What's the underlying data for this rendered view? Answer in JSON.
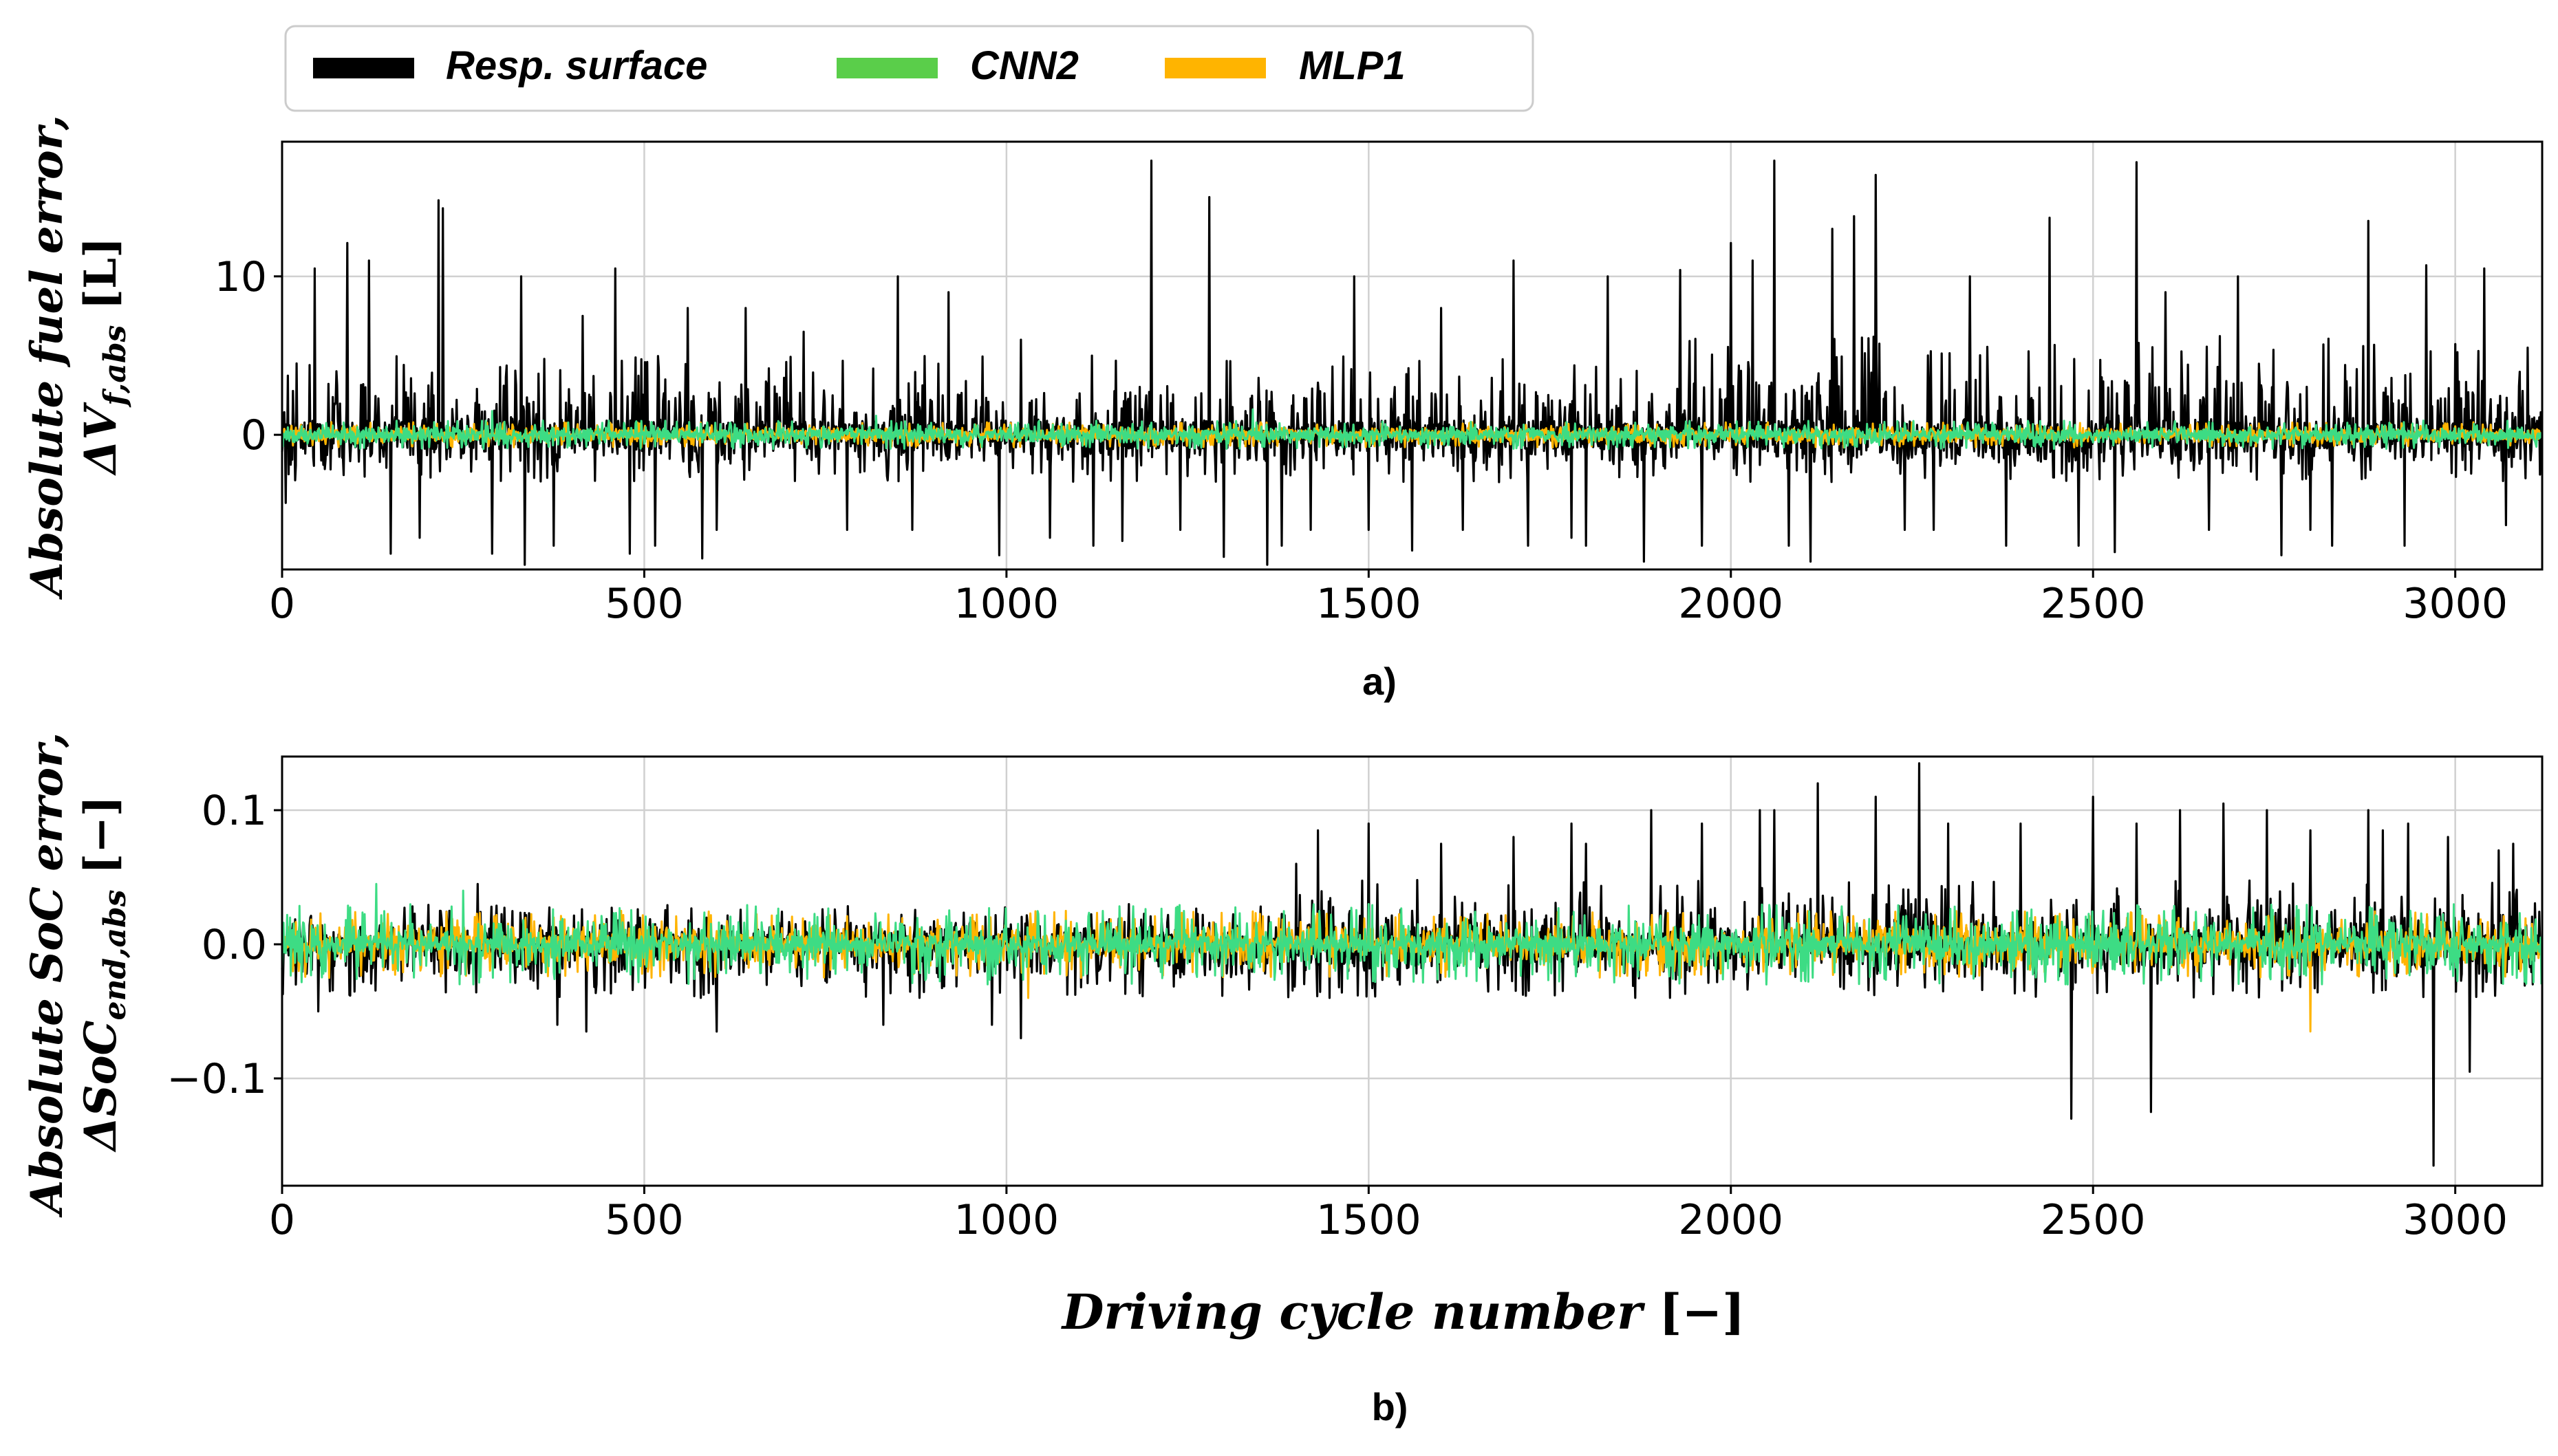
{
  "legend": [
    {
      "name": "Resp. surface",
      "color": "#000000"
    },
    {
      "name": "CNN2",
      "color": "#5ace4a"
    },
    {
      "name": "MLP1",
      "color": "#ffb400"
    }
  ],
  "xlabel_text": "Driving cycle number",
  "xlabel_unit": "[−]",
  "chart_data": [
    {
      "type": "line",
      "panel": "a)",
      "ylabel_line1": "Absolute fuel error,",
      "ylabel_sym": "ΔV",
      "ylabel_sub": "f,abs",
      "ylabel_unit": "[L]",
      "xlim": [
        0,
        3120
      ],
      "ylim": [
        -8.5,
        18.5
      ],
      "xticks": [
        0,
        500,
        1000,
        1500,
        2000,
        2500,
        3000
      ],
      "xtick_labels": [
        "0",
        "500",
        "1000",
        "1500",
        "2000",
        "2500",
        "3000"
      ],
      "yticks": [
        0,
        10
      ],
      "ytick_labels": [
        "0",
        "10"
      ],
      "grid": true,
      "series": [
        {
          "name": "Resp. surface",
          "color": "#000000",
          "amplitude_pos": 5,
          "amplitude_neg": 3,
          "noise": 0.9,
          "peaks": [
            [
              5,
              -4.3
            ],
            [
              20,
              4.5
            ],
            [
              45,
              10.5
            ],
            [
              90,
              12.1
            ],
            [
              120,
              11
            ],
            [
              150,
              -7.5
            ],
            [
              190,
              -6.5
            ],
            [
              216,
              14.8
            ],
            [
              222,
              14.3
            ],
            [
              290,
              -7.5
            ],
            [
              330,
              10
            ],
            [
              335,
              -8.2
            ],
            [
              375,
              -7
            ],
            [
              415,
              7.5
            ],
            [
              460,
              10.5
            ],
            [
              480,
              -7.5
            ],
            [
              515,
              -7
            ],
            [
              560,
              8
            ],
            [
              580,
              -7.8
            ],
            [
              600,
              -6
            ],
            [
              640,
              8
            ],
            [
              720,
              6.5
            ],
            [
              780,
              -6
            ],
            [
              850,
              10
            ],
            [
              870,
              -6
            ],
            [
              920,
              9
            ],
            [
              990,
              -7.6
            ],
            [
              1020,
              6
            ],
            [
              1060,
              -6.5
            ],
            [
              1120,
              -7
            ],
            [
              1160,
              -6.7
            ],
            [
              1200,
              17.3
            ],
            [
              1240,
              -6
            ],
            [
              1280,
              15
            ],
            [
              1300,
              -7.7
            ],
            [
              1360,
              -8.2
            ],
            [
              1380,
              -7
            ],
            [
              1420,
              -6
            ],
            [
              1480,
              10
            ],
            [
              1500,
              -6
            ],
            [
              1560,
              -7.3
            ],
            [
              1600,
              8
            ],
            [
              1630,
              -6
            ],
            [
              1700,
              11
            ],
            [
              1720,
              -7
            ],
            [
              1780,
              -6.5
            ],
            [
              1800,
              -7
            ],
            [
              1830,
              10
            ],
            [
              1880,
              -8
            ],
            [
              1930,
              10.4
            ],
            [
              1960,
              -7
            ],
            [
              2000,
              12.1
            ],
            [
              2030,
              11
            ],
            [
              2060,
              17.3
            ],
            [
              2080,
              -7
            ],
            [
              2110,
              -8
            ],
            [
              2140,
              13
            ],
            [
              2170,
              13.8
            ],
            [
              2200,
              16.4
            ],
            [
              2240,
              -6
            ],
            [
              2280,
              -6
            ],
            [
              2330,
              10
            ],
            [
              2380,
              -7
            ],
            [
              2440,
              13.7
            ],
            [
              2480,
              -7
            ],
            [
              2530,
              -7.4
            ],
            [
              2560,
              17.2
            ],
            [
              2600,
              9
            ],
            [
              2660,
              -6
            ],
            [
              2700,
              10
            ],
            [
              2760,
              -7.6
            ],
            [
              2800,
              -6
            ],
            [
              2830,
              -7
            ],
            [
              2880,
              13.5
            ],
            [
              2930,
              -7
            ],
            [
              2960,
              10.7
            ],
            [
              3040,
              10.5
            ],
            [
              3070,
              -5.7
            ],
            [
              3100,
              5.5
            ]
          ]
        },
        {
          "name": "MLP1",
          "color": "#ffb400",
          "amplitude_pos": 0.8,
          "amplitude_neg": 0.8,
          "noise": 0.3,
          "peaks": []
        },
        {
          "name": "CNN2",
          "color": "#3ddc84",
          "amplitude_pos": 0.9,
          "amplitude_neg": 0.9,
          "noise": 0.3,
          "peaks": [
            [
              290,
              1.5
            ],
            [
              1340,
              1.6
            ],
            [
              820,
              1.2
            ]
          ]
        }
      ]
    },
    {
      "type": "line",
      "panel": "b)",
      "ylabel_line1": "Absolute SoC error,",
      "ylabel_sym": "ΔSoC",
      "ylabel_sub": "end,abs",
      "ylabel_unit": "[−]",
      "xlim": [
        0,
        3120
      ],
      "ylim": [
        -0.18,
        0.14
      ],
      "xticks": [
        0,
        500,
        1000,
        1500,
        2000,
        2500,
        3000
      ],
      "xtick_labels": [
        "0",
        "500",
        "1000",
        "1500",
        "2000",
        "2500",
        "3000"
      ],
      "yticks": [
        -0.1,
        0.0,
        0.1
      ],
      "ytick_labels": [
        "−0.1",
        "0.0",
        "0.1"
      ],
      "grid": true,
      "series": [
        {
          "name": "Resp. surface",
          "color": "#000000",
          "amplitude_pos": 0.03,
          "amplitude_neg": 0.04,
          "noise": 0.01,
          "peaks": [
            [
              50,
              -0.05
            ],
            [
              270,
              0.045
            ],
            [
              380,
              -0.06
            ],
            [
              420,
              -0.065
            ],
            [
              600,
              -0.065
            ],
            [
              830,
              -0.06
            ],
            [
              980,
              -0.06
            ],
            [
              1020,
              -0.07
            ],
            [
              1400,
              0.06
            ],
            [
              1430,
              0.085
            ],
            [
              1500,
              0.09
            ],
            [
              1600,
              0.075
            ],
            [
              1700,
              0.08
            ],
            [
              1780,
              0.09
            ],
            [
              1800,
              0.075
            ],
            [
              1890,
              0.1
            ],
            [
              1960,
              0.09
            ],
            [
              2040,
              0.1
            ],
            [
              2060,
              0.1
            ],
            [
              2120,
              0.12
            ],
            [
              2200,
              0.11
            ],
            [
              2260,
              0.135
            ],
            [
              2300,
              0.09
            ],
            [
              2400,
              0.09
            ],
            [
              2470,
              -0.13
            ],
            [
              2500,
              0.11
            ],
            [
              2560,
              0.09
            ],
            [
              2580,
              -0.125
            ],
            [
              2620,
              0.1
            ],
            [
              2680,
              0.105
            ],
            [
              2740,
              0.1
            ],
            [
              2800,
              0.085
            ],
            [
              2880,
              0.1
            ],
            [
              2900,
              0.085
            ],
            [
              2935,
              0.09
            ],
            [
              2970,
              -0.165
            ],
            [
              2990,
              0.08
            ],
            [
              3020,
              -0.095
            ],
            [
              3060,
              0.07
            ],
            [
              3080,
              0.075
            ]
          ]
        },
        {
          "name": "MLP1",
          "color": "#ffb400",
          "amplitude_pos": 0.025,
          "amplitude_neg": 0.025,
          "noise": 0.006,
          "peaks": [
            [
              2800,
              -0.065
            ],
            [
              1030,
              -0.04
            ]
          ]
        },
        {
          "name": "CNN2",
          "color": "#3ddc84",
          "amplitude_pos": 0.03,
          "amplitude_neg": 0.03,
          "noise": 0.006,
          "peaks": [
            [
              130,
              0.045
            ],
            [
              250,
              0.04
            ],
            [
              1500,
              0.03
            ]
          ]
        }
      ]
    }
  ]
}
